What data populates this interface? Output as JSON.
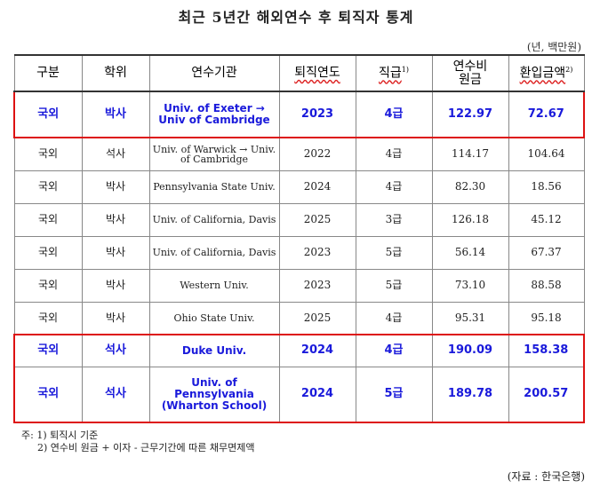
{
  "title": "최근 5년간 해외연수 후 퇴직자 통계",
  "unit": "(년, 백만원)",
  "table": {
    "headers": {
      "category": "구분",
      "degree": "학위",
      "institution": "연수기관",
      "retire_year": "퇴직연도",
      "grade": "직급",
      "grade_note": "1)",
      "cost_line1": "연수비",
      "cost_line2": "원금",
      "refund": "환입금액",
      "refund_note": "2)"
    },
    "rows": [
      {
        "category": "국외",
        "degree": "박사",
        "institution": "Univ. of Exeter → Univ of Cambridge",
        "retire_year": "2023",
        "grade": "4급",
        "cost": "122.97",
        "refund": "72.67"
      },
      {
        "category": "국외",
        "degree": "석사",
        "institution": "Univ. of Warwick → Univ. of Cambridge",
        "retire_year": "2022",
        "grade": "4급",
        "cost": "114.17",
        "refund": "104.64"
      },
      {
        "category": "국외",
        "degree": "박사",
        "institution": "Pennsylvania State Univ.",
        "retire_year": "2024",
        "grade": "4급",
        "cost": "82.30",
        "refund": "18.56"
      },
      {
        "category": "국외",
        "degree": "박사",
        "institution": "Univ. of California, Davis",
        "retire_year": "2025",
        "grade": "3급",
        "cost": "126.18",
        "refund": "45.12"
      },
      {
        "category": "국외",
        "degree": "박사",
        "institution": "Univ. of California, Davis",
        "retire_year": "2023",
        "grade": "5급",
        "cost": "56.14",
        "refund": "67.37"
      },
      {
        "category": "국외",
        "degree": "박사",
        "institution": "Western Univ.",
        "retire_year": "2023",
        "grade": "5급",
        "cost": "73.10",
        "refund": "88.58"
      },
      {
        "category": "국외",
        "degree": "박사",
        "institution": "Ohio State Univ.",
        "retire_year": "2025",
        "grade": "4급",
        "cost": "95.31",
        "refund": "95.18"
      },
      {
        "category": "국외",
        "degree": "석사",
        "institution": "Duke Univ.",
        "retire_year": "2024",
        "grade": "4급",
        "cost": "190.09",
        "refund": "158.38"
      },
      {
        "category": "국외",
        "degree": "석사",
        "institution": "Univ. of Pennsylvania (Wharton School)",
        "retire_year": "2024",
        "grade": "5급",
        "cost": "189.78",
        "refund": "200.57"
      }
    ]
  },
  "notes": {
    "note1": "주: 1) 퇴직시 기준",
    "note2": "2) 연수비 원금 + 이자 - 근무기간에 따른 채무면제액"
  },
  "source": "(자료 : 한국은행)",
  "colors": {
    "highlight_text": "#1a1adb",
    "highlight_border": "#d11",
    "underline": "#d22"
  }
}
